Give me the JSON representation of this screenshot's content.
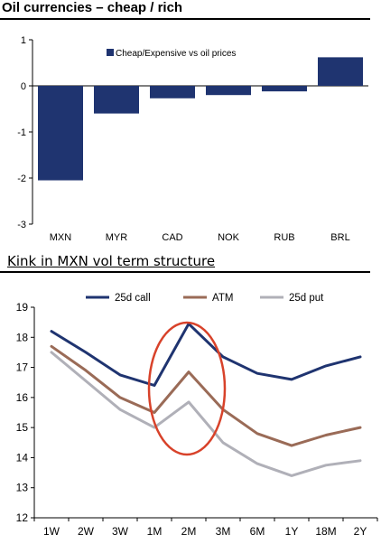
{
  "chart_data": [
    {
      "type": "bar",
      "title": "Oil currencies – cheap / rich",
      "categories": [
        "MXN",
        "MYR",
        "CAD",
        "NOK",
        "RUB",
        "BRL"
      ],
      "series": [
        {
          "name": "Cheap/Expensive vs oil prices",
          "values": [
            -2.05,
            -0.6,
            -0.27,
            -0.2,
            -0.12,
            0.62
          ]
        }
      ],
      "ylim": [
        -3,
        1
      ],
      "yticks": [
        -3,
        -2,
        -1,
        0,
        1
      ],
      "legend_position": "top",
      "grid": false,
      "colors": {
        "bar": "#1f3470"
      }
    },
    {
      "type": "line",
      "title": "Kink in MXN vol term structure",
      "categories": [
        "1W",
        "2W",
        "3W",
        "1M",
        "2M",
        "3M",
        "6M",
        "1Y",
        "18M",
        "2Y"
      ],
      "series": [
        {
          "name": "25d call",
          "color": "#1f3470",
          "values": [
            18.2,
            17.5,
            16.75,
            16.4,
            18.45,
            17.35,
            16.8,
            16.6,
            17.05,
            17.35
          ]
        },
        {
          "name": "ATM",
          "color": "#9a6b57",
          "values": [
            17.7,
            16.9,
            16.0,
            15.5,
            16.85,
            15.6,
            14.8,
            14.4,
            14.75,
            15.0
          ]
        },
        {
          "name": "25d put",
          "color": "#b0b0b8",
          "values": [
            17.5,
            16.55,
            15.6,
            15.0,
            15.85,
            14.5,
            13.8,
            13.4,
            13.75,
            13.9
          ]
        }
      ],
      "ylim": [
        12,
        19
      ],
      "yticks": [
        12,
        13,
        14,
        15,
        16,
        17,
        18,
        19
      ],
      "legend_position": "top",
      "grid": false,
      "annotation": {
        "shape": "ellipse",
        "color": "#d8422a",
        "around": "2M"
      }
    }
  ]
}
